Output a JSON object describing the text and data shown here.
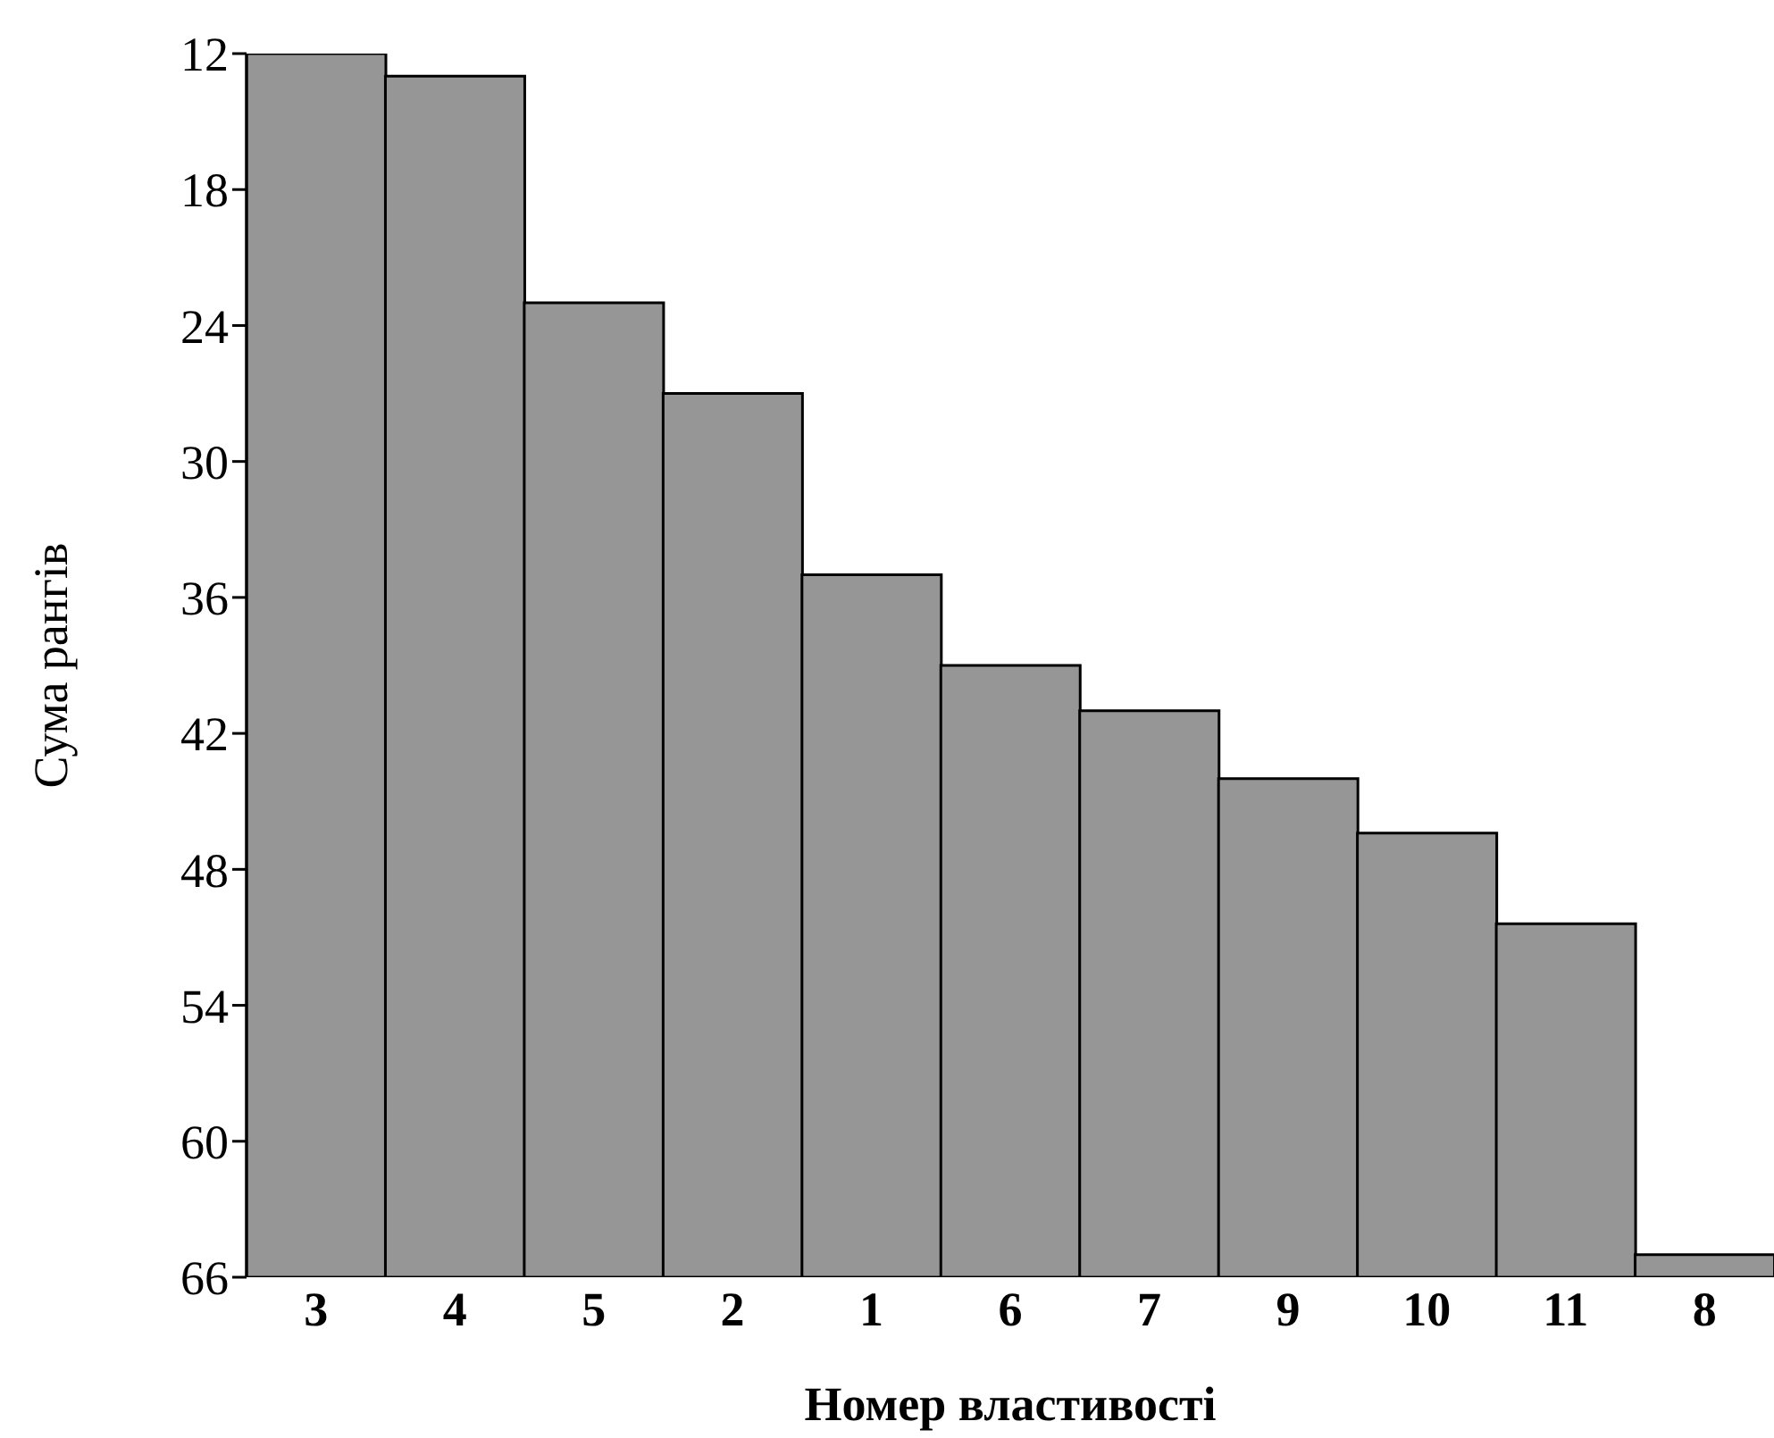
{
  "chart_data": {
    "type": "bar",
    "xlabel": "Номер властивості",
    "ylabel": "Сума рангів",
    "categories": [
      "3",
      "4",
      "5",
      "2",
      "1",
      "6",
      "7",
      "9",
      "10",
      "11",
      "8"
    ],
    "base": [
      66,
      66,
      66,
      66,
      66,
      66,
      66,
      66,
      66,
      66,
      66
    ],
    "values": [
      -54,
      -53,
      -43,
      -39,
      -31,
      -27,
      -25,
      -22,
      -19.6,
      -15.6,
      -1
    ],
    "color": "#969696",
    "ylim": [
      66,
      12
    ],
    "yticks": [
      12,
      18,
      24,
      30,
      36,
      42,
      48,
      54,
      60,
      66
    ],
    "grid": false,
    "legend": false
  }
}
